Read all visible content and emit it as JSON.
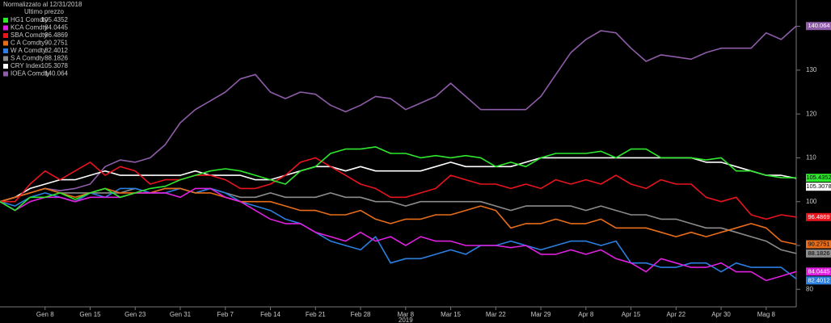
{
  "chart_data": {
    "type": "line",
    "legend_title": "Normalizzato al 12/31/2018",
    "legend_subtitle": "Ultimo prezzo",
    "legend_position": "top-left",
    "categories": [
      null,
      null,
      null,
      "Gen 8",
      null,
      null,
      "Gen 15",
      null,
      null,
      "Gen 23",
      null,
      null,
      "Gen 31",
      null,
      null,
      "Feb 7",
      null,
      null,
      "Feb 14",
      null,
      null,
      "Feb 21",
      null,
      null,
      "Feb 28",
      null,
      null,
      "Mar 8",
      null,
      null,
      "Mar 15",
      null,
      null,
      "Mar 22",
      null,
      null,
      "Mar 29",
      null,
      null,
      "Apr 8",
      null,
      null,
      "Apr 15",
      null,
      null,
      "Apr 22",
      null,
      null,
      "Apr 30",
      null,
      null,
      "Mag 8",
      null,
      null
    ],
    "year_label": "2019",
    "year_label_category": "Mar 8",
    "ylim": [
      76,
      146
    ],
    "yticks": [
      80,
      90,
      100,
      110,
      120,
      130,
      140
    ],
    "grid": false,
    "series": [
      {
        "name": "HG1 Comdty",
        "color": "#2ee82e",
        "values": [
          100,
          98,
          101,
          101,
          102,
          100.5,
          102,
          103,
          101,
          102,
          103,
          103.5,
          105,
          106,
          107,
          107.5,
          107,
          106,
          105,
          104,
          107,
          108,
          111,
          112,
          112,
          112.5,
          111,
          111,
          110,
          110.5,
          110,
          110.5,
          110,
          108,
          109,
          108,
          110,
          111,
          111,
          111,
          111.5,
          110,
          112,
          112,
          110,
          110,
          110,
          109.5,
          110,
          107,
          107,
          106,
          105.5,
          105.4352
        ]
      },
      {
        "name": "KCA Comdty",
        "color": "#e020e0",
        "values": [
          100,
          98,
          100,
          101,
          101,
          100,
          101,
          101,
          101,
          102,
          102,
          102,
          101,
          103,
          103,
          101,
          100,
          98,
          96,
          95,
          95,
          93,
          92,
          91,
          93,
          91,
          92,
          90,
          92,
          91,
          91,
          90,
          90,
          90,
          89.5,
          90,
          88,
          88,
          89,
          88,
          89,
          87,
          86,
          84,
          87,
          86,
          85,
          85,
          86,
          84,
          84,
          82,
          83,
          84.0445
        ]
      },
      {
        "name": "SBA Comdty",
        "color": "#e8141e",
        "values": [
          100,
          100,
          104,
          107,
          105,
          107,
          109,
          106,
          108,
          107,
          104,
          105,
          105,
          106,
          106,
          105,
          103,
          103,
          104,
          106,
          109,
          110,
          108,
          106,
          104,
          103,
          101,
          101,
          102,
          103,
          106,
          105,
          104,
          104,
          103,
          104,
          103,
          105,
          104,
          105,
          104,
          106,
          104,
          103,
          105,
          104,
          104,
          101,
          100,
          101,
          97,
          96,
          97,
          96.4869
        ]
      },
      {
        "name": "C A Comdty",
        "color": "#e86d1a",
        "values": [
          100,
          101,
          102,
          103,
          102,
          101,
          102,
          103,
          102,
          102,
          102,
          103,
          103,
          102,
          102,
          101,
          100,
          100,
          100,
          99,
          98,
          98,
          97,
          97,
          98,
          96,
          95,
          96,
          96,
          97,
          97,
          98,
          99,
          98,
          94,
          95,
          95,
          96,
          95,
          95,
          96,
          94,
          94,
          94,
          93,
          92,
          93,
          92,
          93,
          94,
          95,
          94,
          91,
          90.2751
        ]
      },
      {
        "name": "W A Comdty",
        "color": "#2a7fe0",
        "values": [
          100,
          99,
          101,
          102,
          101,
          100,
          102,
          101,
          103,
          103,
          102,
          102,
          103,
          102,
          103,
          102,
          100,
          99,
          98,
          96,
          95,
          93,
          91,
          90,
          89,
          92,
          86,
          87,
          87,
          88,
          89,
          88,
          90,
          90,
          91,
          90,
          89,
          90,
          91,
          91,
          90,
          91,
          86,
          86,
          85,
          85,
          86,
          86,
          84,
          86,
          85,
          85,
          85,
          82.4012
        ]
      },
      {
        "name": "S A Comdty",
        "color": "#8c8c8c",
        "values": [
          100,
          101,
          102,
          103,
          102,
          102,
          102,
          102,
          102,
          103,
          102,
          103,
          103,
          102,
          103,
          102,
          101,
          101,
          102,
          101,
          101,
          101,
          102,
          101,
          101,
          100,
          100,
          99,
          100,
          100,
          100,
          100,
          100,
          99,
          98,
          99,
          99,
          99,
          99,
          98,
          99,
          98,
          97,
          97,
          96,
          96,
          95,
          94,
          94,
          93,
          92,
          91,
          89,
          88.1826
        ]
      },
      {
        "name": "CRY Index",
        "color": "#ffffff",
        "values": [
          100,
          101,
          103,
          104,
          105,
          105,
          106,
          107,
          106,
          106,
          106,
          106,
          106,
          107,
          106,
          106,
          106,
          105,
          105,
          106,
          107,
          108,
          108,
          107,
          108,
          107,
          107,
          107,
          107,
          108,
          109,
          108,
          108,
          108,
          108,
          109,
          110,
          110,
          110,
          110,
          110,
          110,
          110,
          110,
          110,
          110,
          110,
          109,
          109,
          108,
          107,
          106,
          106,
          105.3078
        ]
      },
      {
        "name": "IOEA Comdty",
        "color": "#8e5ca8",
        "values": [
          100,
          101,
          102,
          103,
          102.5,
          103,
          104,
          108,
          109.5,
          109,
          110,
          113,
          118,
          121,
          123,
          125,
          128,
          129,
          125,
          123.5,
          125,
          124.5,
          122,
          120.5,
          122,
          124,
          123.5,
          121,
          122.5,
          124,
          127,
          124,
          121,
          121,
          121,
          121,
          124,
          129,
          134,
          137,
          139,
          138.5,
          135,
          132,
          133.5,
          133,
          132.5,
          134,
          135,
          135,
          135,
          138.5,
          137,
          140.064
        ]
      }
    ]
  }
}
